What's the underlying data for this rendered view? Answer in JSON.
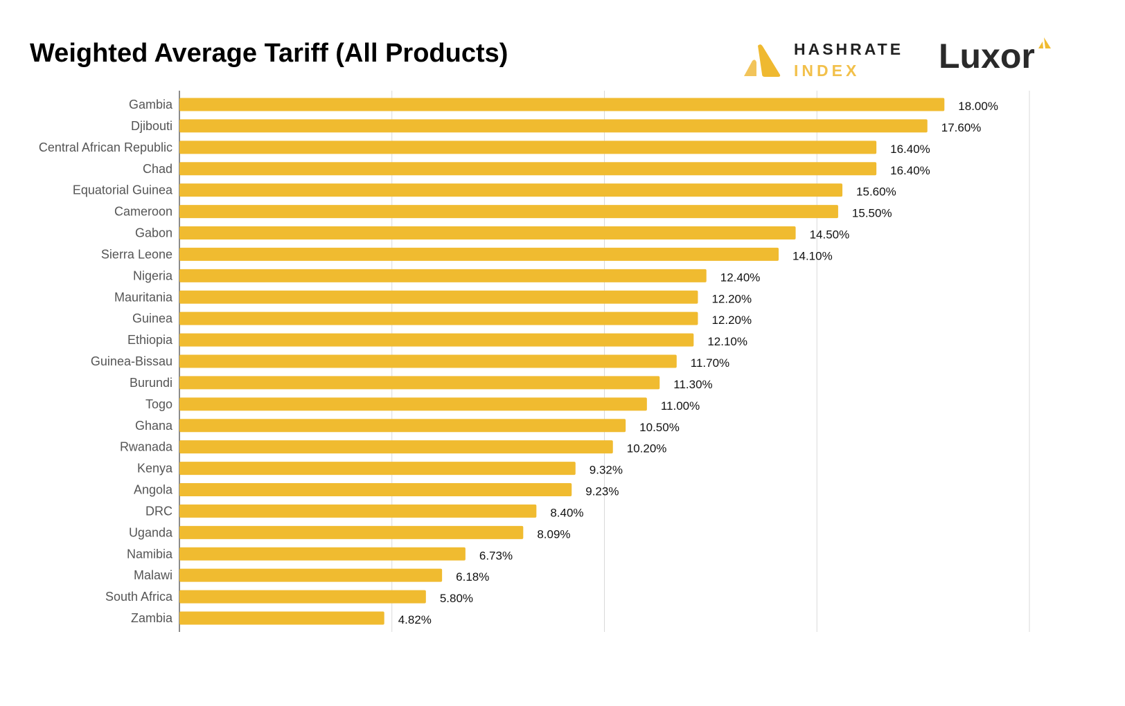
{
  "chart_data": {
    "type": "bar",
    "orientation": "horizontal",
    "title": "Weighted Average Tariff (All Products)",
    "categories": [
      "Gambia",
      "Djibouti",
      "Central African Republic",
      "Chad",
      "Equatorial Guinea",
      "Cameroon",
      "Gabon",
      "Sierra Leone",
      "Nigeria",
      "Mauritania",
      "Guinea",
      "Ethiopia",
      "Guinea-Bissau",
      "Burundi",
      "Togo",
      "Ghana",
      "Rwanada",
      "Kenya",
      "Angola",
      "DRC",
      "Uganda",
      "Namibia",
      "Malawi",
      "South Africa",
      "Zambia"
    ],
    "values": [
      18.0,
      17.6,
      16.4,
      16.4,
      15.6,
      15.5,
      14.5,
      14.1,
      12.4,
      12.2,
      12.2,
      12.1,
      11.7,
      11.3,
      11.0,
      10.5,
      10.2,
      9.32,
      9.23,
      8.4,
      8.09,
      6.73,
      6.18,
      5.8,
      4.82
    ],
    "data_labels": [
      "18.00%",
      "17.60%",
      "16.40%",
      "16.40%",
      "15.60%",
      "15.50%",
      "14.50%",
      "14.10%",
      "12.40%",
      "12.20%",
      "12.20%",
      "12.10%",
      "11.70%",
      "11.30%",
      "11.00%",
      "10.50%",
      "10.20%",
      "9.32%",
      "9.23%",
      "8.40%",
      "8.09%",
      "6.73%",
      "6.18%",
      "5.80%",
      "4.82%"
    ],
    "unit": "%",
    "xlim": [
      0,
      20
    ],
    "gridlines": [
      5,
      10,
      15,
      20
    ],
    "grid": true,
    "tick_labels_shown": false,
    "bar_color": "#f0bb30"
  },
  "logos": {
    "hashrate_top": "HASHRATE",
    "hashrate_bottom": "INDEX",
    "luxor": "Luxor"
  }
}
